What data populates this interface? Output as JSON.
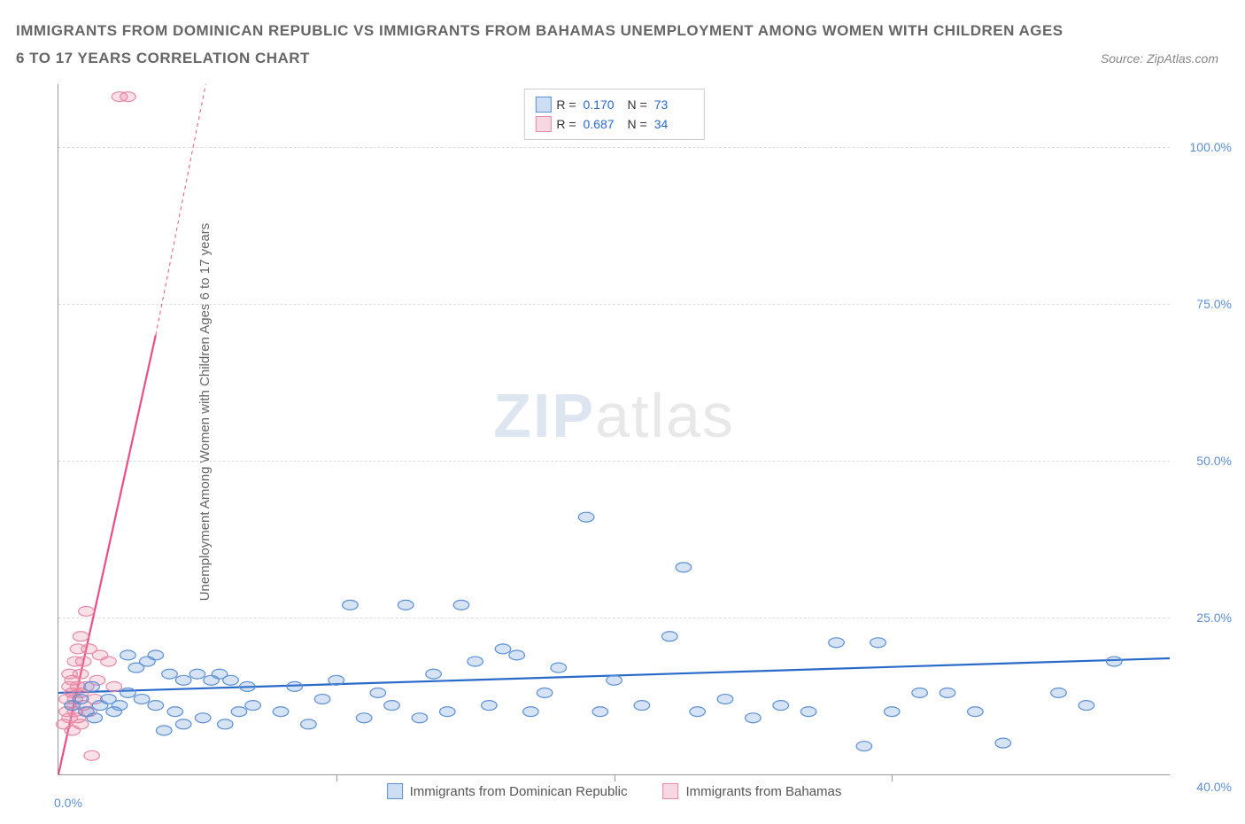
{
  "title": "IMMIGRANTS FROM DOMINICAN REPUBLIC VS IMMIGRANTS FROM BAHAMAS UNEMPLOYMENT AMONG WOMEN WITH CHILDREN AGES 6 TO 17 YEARS CORRELATION CHART",
  "source": "Source: ZipAtlas.com",
  "watermark_a": "ZIP",
  "watermark_b": "atlas",
  "y_axis_label": "Unemployment Among Women with Children Ages 6 to 17 years",
  "chart": {
    "type": "scatter",
    "xlim": [
      0,
      40
    ],
    "ylim": [
      0,
      110
    ],
    "x_origin_label": "0.0%",
    "x_max_label": "40.0%",
    "x_ticks": [
      10,
      20,
      30
    ],
    "y_gridlines": [
      {
        "value": 25,
        "label": "25.0%"
      },
      {
        "value": 50,
        "label": "50.0%"
      },
      {
        "value": 75,
        "label": "75.0%"
      },
      {
        "value": 100,
        "label": "100.0%"
      }
    ],
    "background_color": "#ffffff",
    "grid_color": "#dddddd",
    "axis_color": "#999999",
    "marker_radius": 7,
    "marker_stroke_width": 1.2,
    "series": [
      {
        "name": "Immigrants from Dominican Republic",
        "color_fill": "rgba(91,143,214,0.25)",
        "color_stroke": "#5b8fd6",
        "swatch_fill": "#cdddf4",
        "swatch_border": "#5b8fd6",
        "R": "0.170",
        "N": "73",
        "trend": {
          "x1": 0,
          "y1": 13,
          "x2": 40,
          "y2": 18.5,
          "stroke": "#2969c9",
          "width": 2.2,
          "dash": "none"
        },
        "points": [
          [
            0.5,
            11
          ],
          [
            0.8,
            12
          ],
          [
            1.0,
            10
          ],
          [
            1.2,
            14
          ],
          [
            1.3,
            9
          ],
          [
            1.5,
            11
          ],
          [
            1.8,
            12
          ],
          [
            2.0,
            10
          ],
          [
            2.2,
            11
          ],
          [
            2.5,
            13
          ],
          [
            2.5,
            19
          ],
          [
            2.8,
            17
          ],
          [
            3.0,
            12
          ],
          [
            3.2,
            18
          ],
          [
            3.5,
            11
          ],
          [
            3.5,
            19
          ],
          [
            3.8,
            7
          ],
          [
            4.0,
            16
          ],
          [
            4.2,
            10
          ],
          [
            4.5,
            15
          ],
          [
            4.5,
            8
          ],
          [
            5.0,
            16
          ],
          [
            5.2,
            9
          ],
          [
            5.5,
            15
          ],
          [
            5.8,
            16
          ],
          [
            6.0,
            8
          ],
          [
            6.2,
            15
          ],
          [
            6.5,
            10
          ],
          [
            6.8,
            14
          ],
          [
            7.0,
            11
          ],
          [
            8.0,
            10
          ],
          [
            8.5,
            14
          ],
          [
            9.0,
            8
          ],
          [
            9.5,
            12
          ],
          [
            10.0,
            15
          ],
          [
            10.5,
            27
          ],
          [
            11.0,
            9
          ],
          [
            11.5,
            13
          ],
          [
            12.0,
            11
          ],
          [
            12.5,
            27
          ],
          [
            13.0,
            9
          ],
          [
            13.5,
            16
          ],
          [
            14.0,
            10
          ],
          [
            14.5,
            27
          ],
          [
            15.0,
            18
          ],
          [
            15.5,
            11
          ],
          [
            16.0,
            20
          ],
          [
            16.5,
            19
          ],
          [
            17.0,
            10
          ],
          [
            17.5,
            13
          ],
          [
            18.0,
            17
          ],
          [
            19.0,
            41
          ],
          [
            19.5,
            10
          ],
          [
            20.0,
            15
          ],
          [
            21.0,
            11
          ],
          [
            22.0,
            22
          ],
          [
            22.5,
            33
          ],
          [
            23.0,
            10
          ],
          [
            24.0,
            12
          ],
          [
            25.0,
            9
          ],
          [
            26.0,
            11
          ],
          [
            27.0,
            10
          ],
          [
            28.0,
            21
          ],
          [
            29.0,
            4.5
          ],
          [
            29.5,
            21
          ],
          [
            30.0,
            10
          ],
          [
            31.0,
            13
          ],
          [
            32.0,
            13
          ],
          [
            33.0,
            10
          ],
          [
            34.0,
            5
          ],
          [
            36.0,
            13
          ],
          [
            37.0,
            11
          ],
          [
            38.0,
            18
          ]
        ]
      },
      {
        "name": "Immigrants from Bahamas",
        "color_fill": "rgba(235,130,160,0.25)",
        "color_stroke": "#e789a8",
        "swatch_fill": "#f7d7e1",
        "swatch_border": "#e789a8",
        "R": "0.687",
        "N": "34",
        "trend_solid": {
          "x1": 0,
          "y1": 0,
          "x2": 3.5,
          "y2": 70,
          "stroke": "#e94f86",
          "width": 2.2
        },
        "trend_dash": {
          "x1": 3.5,
          "y1": 70,
          "x2": 5.3,
          "y2": 110,
          "stroke": "#e94f86",
          "width": 1,
          "dash": "4 4"
        },
        "points": [
          [
            0.2,
            8
          ],
          [
            0.3,
            10
          ],
          [
            0.3,
            12
          ],
          [
            0.4,
            9
          ],
          [
            0.4,
            14
          ],
          [
            0.4,
            16
          ],
          [
            0.5,
            7
          ],
          [
            0.5,
            11
          ],
          [
            0.5,
            13
          ],
          [
            0.5,
            15
          ],
          [
            0.6,
            10
          ],
          [
            0.6,
            12
          ],
          [
            0.6,
            18
          ],
          [
            0.7,
            9
          ],
          [
            0.7,
            14
          ],
          [
            0.7,
            20
          ],
          [
            0.8,
            8
          ],
          [
            0.8,
            13
          ],
          [
            0.8,
            16
          ],
          [
            0.8,
            22
          ],
          [
            0.9,
            11
          ],
          [
            0.9,
            18
          ],
          [
            1.0,
            26
          ],
          [
            1.0,
            14
          ],
          [
            1.1,
            10
          ],
          [
            1.1,
            20
          ],
          [
            1.2,
            3
          ],
          [
            1.3,
            12
          ],
          [
            1.4,
            15
          ],
          [
            1.5,
            19
          ],
          [
            1.8,
            18
          ],
          [
            2.0,
            14
          ],
          [
            2.2,
            108
          ],
          [
            2.5,
            108
          ]
        ]
      }
    ]
  },
  "legend_top": {
    "r_label": "R =",
    "n_label": "N ="
  }
}
